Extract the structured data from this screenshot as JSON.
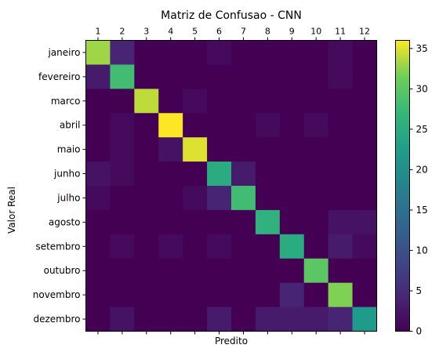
{
  "chart_data": {
    "type": "heatmap",
    "title": "Matriz de Confusao - CNN",
    "xlabel": "Predito",
    "ylabel": "Valor Real",
    "x_ticks": [
      "1",
      "2",
      "3",
      "4",
      "5",
      "6",
      "7",
      "8",
      "9",
      "10",
      "11",
      "12"
    ],
    "y_ticks": [
      "janeiro",
      "fevereiro",
      "marco",
      "abril",
      "maio",
      "junho",
      "julho",
      "agosto",
      "setembro",
      "outubro",
      "novembro",
      "dezembro"
    ],
    "colorbar_ticks": [
      "0",
      "5",
      "10",
      "15",
      "20",
      "25",
      "30",
      "35"
    ],
    "vmin": 0,
    "vmax": 36,
    "colormap": "viridis",
    "values": [
      [
        33,
        4,
        0,
        0,
        0,
        1,
        0,
        0,
        0,
        0,
        1,
        0
      ],
      [
        3,
        28,
        0,
        0,
        0,
        0,
        0,
        0,
        0,
        0,
        1,
        0
      ],
      [
        0,
        0,
        34,
        0,
        1,
        0,
        0,
        0,
        0,
        0,
        0,
        0
      ],
      [
        0,
        1,
        0,
        36,
        0,
        0,
        0,
        1,
        0,
        1,
        0,
        0
      ],
      [
        0,
        1,
        0,
        2,
        35,
        0,
        0,
        0,
        0,
        0,
        0,
        0
      ],
      [
        2,
        1,
        0,
        0,
        0,
        25,
        3,
        0,
        0,
        0,
        0,
        0
      ],
      [
        1,
        0,
        0,
        0,
        1,
        4,
        28,
        0,
        0,
        0,
        0,
        0
      ],
      [
        0,
        0,
        0,
        0,
        0,
        0,
        0,
        26,
        0,
        0,
        2,
        2
      ],
      [
        0,
        1,
        0,
        1,
        0,
        1,
        0,
        0,
        25,
        0,
        3,
        1
      ],
      [
        0,
        0,
        0,
        0,
        0,
        0,
        0,
        0,
        0,
        30,
        0,
        0
      ],
      [
        0,
        0,
        0,
        0,
        0,
        0,
        0,
        0,
        4,
        0,
        32,
        0
      ],
      [
        0,
        2,
        0,
        0,
        0,
        3,
        0,
        3,
        3,
        3,
        4,
        22
      ]
    ]
  }
}
